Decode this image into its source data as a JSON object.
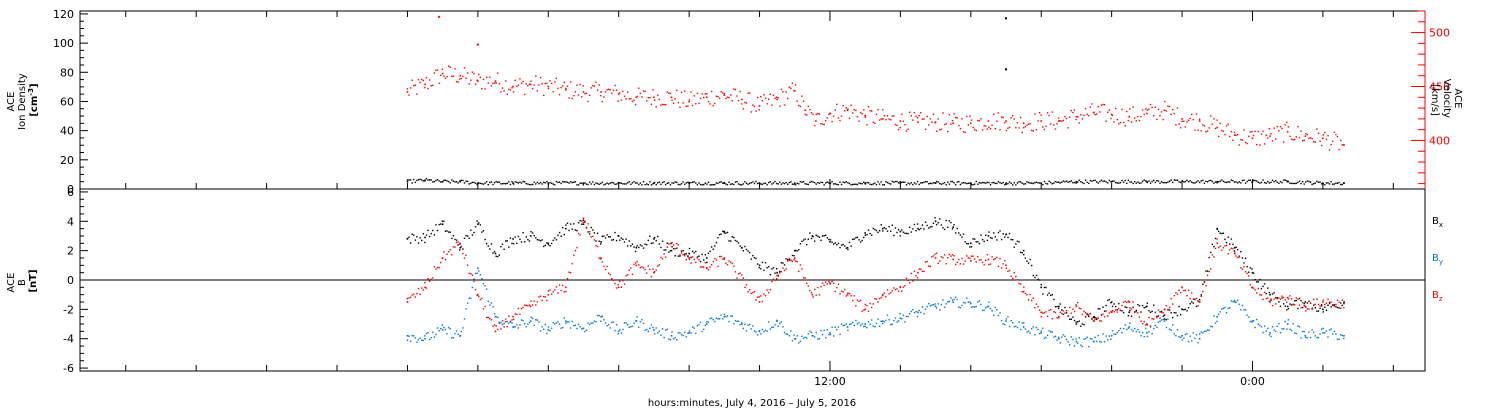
{
  "chart_data": [
    {
      "type": "scatter",
      "panel": "ion-density-velocity",
      "left_axis": {
        "label_lines": [
          "ACE",
          "Ion Density"
        ],
        "unit_base": "[cm",
        "unit_sup": "-3",
        "unit_end": "]",
        "ylim": [
          0,
          122
        ],
        "ticks": [
          0,
          20,
          40,
          60,
          80,
          100,
          120
        ]
      },
      "right_axis": {
        "label_lines": [
          "ACE",
          "Velocity"
        ],
        "unit": "[km/s]",
        "ylim": [
          355,
          520
        ],
        "ticks": [
          400,
          450,
          500
        ],
        "color": "#ff0000"
      },
      "series": [
        {
          "color": "#000000",
          "axis": "left",
          "points": [
            [
              0.0,
              5
            ],
            [
              0.5,
              6
            ],
            [
              1.0,
              5
            ],
            [
              1.5,
              5
            ],
            [
              2.0,
              4
            ],
            [
              3.0,
              4
            ],
            [
              4.0,
              4
            ],
            [
              5.0,
              4
            ],
            [
              6.0,
              4
            ],
            [
              7.0,
              4
            ],
            [
              8.0,
              4
            ],
            [
              9.0,
              4
            ],
            [
              10.0,
              4
            ],
            [
              11.0,
              4
            ],
            [
              12.0,
              4
            ],
            [
              13.0,
              4
            ],
            [
              14.0,
              4
            ],
            [
              15.0,
              4
            ],
            [
              16.0,
              4
            ],
            [
              17.0,
              4
            ],
            [
              18.0,
              4
            ],
            [
              19.0,
              5
            ],
            [
              20.0,
              5
            ],
            [
              21.0,
              5
            ],
            [
              22.0,
              5
            ],
            [
              23.0,
              5
            ],
            [
              24.0,
              5
            ],
            [
              25.0,
              5
            ],
            [
              26.0,
              4
            ],
            [
              26.6,
              4
            ]
          ]
        },
        {
          "color": "#ff0000",
          "axis": "right",
          "points": [
            [
              0.0,
              445
            ],
            [
              0.5,
              452
            ],
            [
              1.0,
              462
            ],
            [
              1.5,
              460
            ],
            [
              2.0,
              455
            ],
            [
              2.5,
              455
            ],
            [
              3.0,
              450
            ],
            [
              3.5,
              452
            ],
            [
              4.0,
              450
            ],
            [
              4.5,
              447
            ],
            [
              5.0,
              445
            ],
            [
              5.5,
              445
            ],
            [
              6.0,
              443
            ],
            [
              6.5,
              440
            ],
            [
              7.0,
              440
            ],
            [
              7.5,
              440
            ],
            [
              8.0,
              436
            ],
            [
              8.5,
              440
            ],
            [
              9.0,
              442
            ],
            [
              9.5,
              438
            ],
            [
              10.0,
              432
            ],
            [
              10.5,
              438
            ],
            [
              11.0,
              446
            ],
            [
              11.3,
              428
            ],
            [
              11.6,
              418
            ],
            [
              12.0,
              425
            ],
            [
              12.5,
              428
            ],
            [
              13.0,
              423
            ],
            [
              13.5,
              420
            ],
            [
              14.0,
              418
            ],
            [
              14.5,
              417
            ],
            [
              15.0,
              417
            ],
            [
              15.5,
              416
            ],
            [
              16.0,
              416
            ],
            [
              16.5,
              418
            ],
            [
              17.0,
              418
            ],
            [
              17.5,
              416
            ],
            [
              18.0,
              418
            ],
            [
              18.5,
              418
            ],
            [
              19.0,
              422
            ],
            [
              19.5,
              426
            ],
            [
              20.0,
              424
            ],
            [
              20.5,
              422
            ],
            [
              21.0,
              425
            ],
            [
              21.5,
              428
            ],
            [
              22.0,
              420
            ],
            [
              22.5,
              418
            ],
            [
              23.0,
              412
            ],
            [
              23.5,
              405
            ],
            [
              24.0,
              402
            ],
            [
              24.5,
              404
            ],
            [
              25.0,
              408
            ],
            [
              25.5,
              404
            ],
            [
              26.0,
              402
            ],
            [
              26.6,
              396
            ]
          ]
        }
      ],
      "outliers": [
        [
          0.9,
          118,
          "left",
          "#ff0000"
        ],
        [
          2.0,
          99,
          "left",
          "#ff0000"
        ],
        [
          17.0,
          117,
          "left",
          "#000000"
        ],
        [
          17.0,
          82,
          "left",
          "#000000"
        ]
      ]
    },
    {
      "type": "scatter",
      "panel": "magnetic-field",
      "axis": {
        "label_lines": [
          "ACE",
          "B"
        ],
        "unit": "[nT]",
        "ylim": [
          -6.2,
          6.2
        ],
        "ticks": [
          -6,
          -4,
          -2,
          0,
          2,
          4,
          6
        ]
      },
      "zero_line": true,
      "legend": [
        {
          "base": "B",
          "sub": "x",
          "color": "#000000"
        },
        {
          "base": "B",
          "sub": "y",
          "color": "#0078dc"
        },
        {
          "base": "B",
          "sub": "z",
          "color": "#ff0000"
        }
      ],
      "series": [
        {
          "name": "Bx",
          "color": "#000000",
          "points": [
            [
              0.0,
              2.8
            ],
            [
              0.5,
              2.9
            ],
            [
              1.0,
              3.8
            ],
            [
              1.5,
              2.2
            ],
            [
              2.0,
              3.8
            ],
            [
              2.5,
              1.8
            ],
            [
              3.0,
              2.8
            ],
            [
              3.5,
              3.0
            ],
            [
              4.0,
              2.5
            ],
            [
              4.5,
              3.5
            ],
            [
              5.0,
              3.8
            ],
            [
              5.5,
              2.6
            ],
            [
              6.0,
              3.0
            ],
            [
              6.5,
              2.2
            ],
            [
              7.0,
              2.8
            ],
            [
              7.5,
              2.0
            ],
            [
              8.0,
              1.8
            ],
            [
              8.5,
              1.5
            ],
            [
              9.0,
              3.3
            ],
            [
              9.5,
              2.2
            ],
            [
              10.0,
              1.0
            ],
            [
              10.5,
              0.5
            ],
            [
              11.0,
              2.0
            ],
            [
              11.5,
              3.0
            ],
            [
              12.0,
              2.6
            ],
            [
              12.5,
              2.2
            ],
            [
              13.0,
              3.2
            ],
            [
              13.5,
              3.5
            ],
            [
              14.0,
              3.3
            ],
            [
              14.5,
              3.5
            ],
            [
              15.0,
              4.0
            ],
            [
              15.5,
              3.6
            ],
            [
              16.0,
              2.5
            ],
            [
              16.5,
              3.0
            ],
            [
              17.0,
              3.1
            ],
            [
              17.5,
              2.0
            ],
            [
              18.0,
              -0.5
            ],
            [
              18.5,
              -1.8
            ],
            [
              19.0,
              -3.0
            ],
            [
              19.5,
              -2.5
            ],
            [
              20.0,
              -1.5
            ],
            [
              20.5,
              -2.2
            ],
            [
              21.0,
              -1.8
            ],
            [
              21.5,
              -2.4
            ],
            [
              22.0,
              -2.0
            ],
            [
              22.5,
              -1.5
            ],
            [
              23.0,
              3.5
            ],
            [
              23.5,
              2.2
            ],
            [
              24.0,
              0.5
            ],
            [
              24.5,
              -1.0
            ],
            [
              25.0,
              -1.8
            ],
            [
              25.5,
              -1.5
            ],
            [
              26.0,
              -2.0
            ],
            [
              26.6,
              -1.5
            ]
          ]
        },
        {
          "name": "By",
          "color": "#0078dc",
          "points": [
            [
              0.0,
              -3.8
            ],
            [
              0.5,
              -4.0
            ],
            [
              1.0,
              -3.4
            ],
            [
              1.5,
              -3.8
            ],
            [
              2.0,
              0.8
            ],
            [
              2.5,
              -2.5
            ],
            [
              3.0,
              -3.2
            ],
            [
              3.5,
              -2.8
            ],
            [
              4.0,
              -3.4
            ],
            [
              4.5,
              -2.8
            ],
            [
              5.0,
              -3.3
            ],
            [
              5.5,
              -2.5
            ],
            [
              6.0,
              -3.5
            ],
            [
              6.5,
              -2.8
            ],
            [
              7.0,
              -3.4
            ],
            [
              7.5,
              -3.8
            ],
            [
              8.0,
              -3.6
            ],
            [
              8.5,
              -3.0
            ],
            [
              9.0,
              -2.5
            ],
            [
              9.5,
              -3.0
            ],
            [
              10.0,
              -3.5
            ],
            [
              10.5,
              -2.8
            ],
            [
              11.0,
              -4.0
            ],
            [
              11.5,
              -3.8
            ],
            [
              12.0,
              -3.6
            ],
            [
              12.5,
              -3.2
            ],
            [
              13.0,
              -3.0
            ],
            [
              13.5,
              -2.8
            ],
            [
              14.0,
              -2.6
            ],
            [
              14.5,
              -2.2
            ],
            [
              15.0,
              -1.8
            ],
            [
              15.5,
              -1.5
            ],
            [
              16.0,
              -1.6
            ],
            [
              16.5,
              -1.8
            ],
            [
              17.0,
              -2.8
            ],
            [
              17.5,
              -3.2
            ],
            [
              18.0,
              -3.6
            ],
            [
              18.5,
              -4.0
            ],
            [
              19.0,
              -4.2
            ],
            [
              19.5,
              -4.2
            ],
            [
              20.0,
              -3.8
            ],
            [
              20.5,
              -3.2
            ],
            [
              21.0,
              -3.6
            ],
            [
              21.5,
              -2.8
            ],
            [
              22.0,
              -3.8
            ],
            [
              22.5,
              -4.0
            ],
            [
              23.0,
              -2.5
            ],
            [
              23.5,
              -1.5
            ],
            [
              24.0,
              -2.8
            ],
            [
              24.5,
              -3.6
            ],
            [
              25.0,
              -3.0
            ],
            [
              25.5,
              -3.8
            ],
            [
              26.0,
              -3.6
            ],
            [
              26.6,
              -3.8
            ]
          ]
        },
        {
          "name": "Bz",
          "color": "#ff0000",
          "points": [
            [
              0.0,
              -1.5
            ],
            [
              0.5,
              -0.5
            ],
            [
              1.0,
              1.5
            ],
            [
              1.5,
              2.5
            ],
            [
              2.0,
              -1.0
            ],
            [
              2.5,
              -3.5
            ],
            [
              3.0,
              -2.5
            ],
            [
              3.5,
              -1.8
            ],
            [
              4.0,
              -1.0
            ],
            [
              4.5,
              -0.5
            ],
            [
              5.0,
              4.2
            ],
            [
              5.5,
              1.5
            ],
            [
              6.0,
              -0.5
            ],
            [
              6.5,
              1.0
            ],
            [
              7.0,
              0.5
            ],
            [
              7.5,
              2.5
            ],
            [
              8.0,
              1.5
            ],
            [
              8.5,
              0.8
            ],
            [
              9.0,
              1.5
            ],
            [
              9.5,
              0.0
            ],
            [
              10.0,
              -1.5
            ],
            [
              10.5,
              0.3
            ],
            [
              11.0,
              1.5
            ],
            [
              11.5,
              -1.0
            ],
            [
              12.0,
              -0.2
            ],
            [
              12.5,
              -1.0
            ],
            [
              13.0,
              -2.0
            ],
            [
              13.5,
              -1.0
            ],
            [
              14.0,
              -0.5
            ],
            [
              14.5,
              0.5
            ],
            [
              15.0,
              1.5
            ],
            [
              15.5,
              1.4
            ],
            [
              16.0,
              1.3
            ],
            [
              16.5,
              1.4
            ],
            [
              17.0,
              1.0
            ],
            [
              17.5,
              -0.8
            ],
            [
              18.0,
              -2.2
            ],
            [
              18.5,
              -2.5
            ],
            [
              19.0,
              -1.8
            ],
            [
              19.5,
              -2.8
            ],
            [
              20.0,
              -2.2
            ],
            [
              20.5,
              -1.5
            ],
            [
              21.0,
              -3.0
            ],
            [
              21.5,
              -2.0
            ],
            [
              22.0,
              -0.5
            ],
            [
              22.5,
              -1.5
            ],
            [
              23.0,
              2.5
            ],
            [
              23.5,
              1.8
            ],
            [
              24.0,
              -0.5
            ],
            [
              24.5,
              -1.5
            ],
            [
              25.0,
              -1.2
            ],
            [
              25.5,
              -1.8
            ],
            [
              26.0,
              -1.5
            ],
            [
              26.6,
              -1.6
            ]
          ]
        }
      ]
    }
  ],
  "x_axis": {
    "range_hours": [
      -9.3,
      28.9
    ],
    "major_ticks": [
      {
        "hour": 12,
        "label": "12:00"
      },
      {
        "hour": 24,
        "label": "0:00"
      }
    ],
    "minor_tick_step_hours": 2,
    "label": "hours:minutes,  July  4, 2016 – July  5, 2016"
  }
}
